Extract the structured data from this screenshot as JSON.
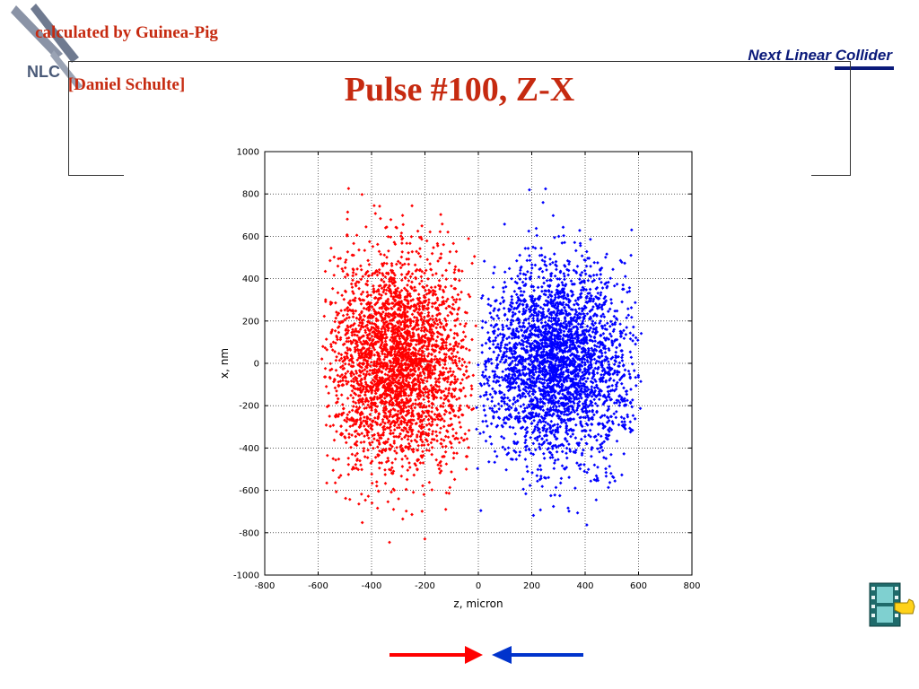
{
  "header": {
    "credit_line1": "calculated by Guinea-Pig",
    "credit_line2": "[Daniel Schulte]",
    "logo_text": "NLC",
    "brand": "Next Linear Collider"
  },
  "title": "Pulse #100, Z-X",
  "colors": {
    "accent_red": "#c62a10",
    "brand_blue": "#0b1a7a",
    "series_red": "#ff0000",
    "series_blue": "#0000ff"
  },
  "icons": {
    "logo": "tongs-logo-icon",
    "nav": "film-hand-icon",
    "arrow_right": "arrow-right-icon",
    "arrow_left": "arrow-left-icon"
  },
  "chart_data": {
    "type": "scatter",
    "title": "",
    "xlabel": "z, micron",
    "ylabel": "x, nm",
    "xlim": [
      -800,
      800
    ],
    "ylim": [
      -1000,
      1000
    ],
    "xticks": [
      -800,
      -600,
      -400,
      -200,
      0,
      200,
      400,
      600,
      800
    ],
    "yticks": [
      -1000,
      -800,
      -600,
      -400,
      -200,
      0,
      200,
      400,
      600,
      800,
      1000
    ],
    "grid": true,
    "series": [
      {
        "color": "#ff0000",
        "distribution": {
          "x_center": -300,
          "x_halfwidth": 300,
          "y_center": 0,
          "y_sigma": 250,
          "count": 3000
        }
      },
      {
        "color": "#0000ff",
        "distribution": {
          "x_center": 300,
          "x_halfwidth": 320,
          "y_center": 0,
          "y_sigma": 230,
          "count": 3000
        }
      }
    ]
  }
}
